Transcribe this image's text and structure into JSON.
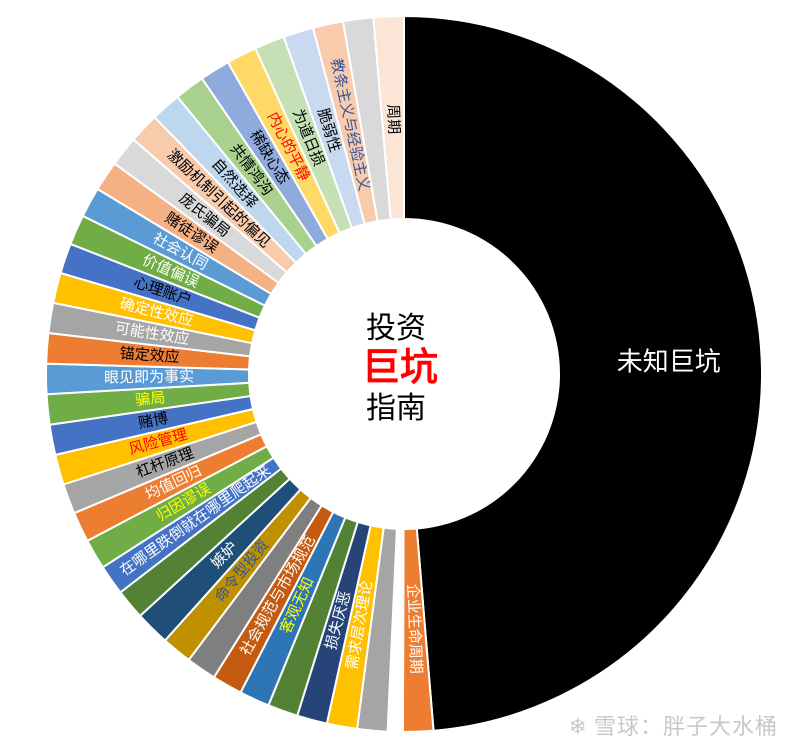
{
  "chart_data": {
    "type": "donut",
    "title": "",
    "center_text": {
      "line1": "投资",
      "line2": "巨坑",
      "line3": "指南"
    },
    "colors": {
      "center_line1": "#000000",
      "center_line2": "#ff0000",
      "center_line3": "#000000",
      "big_slice": "#000000",
      "palette": [
        "#ffc000",
        "#a5a5a5",
        "#ed7d31",
        "#5b9bd5",
        "#70ad47",
        "#4472c4",
        "#264478"
      ]
    },
    "slices": [
      {
        "label": "未知巨坑",
        "value": 50,
        "color": "#000000",
        "text_color": "#ffffff"
      },
      {
        "label": "企业生命周期",
        "value": 1.4,
        "color": "#ed7d31",
        "text_color": "#ffffff"
      },
      {
        "label": "",
        "value": 0.7,
        "color": "#ffffff",
        "text_color": "#ffffff"
      },
      {
        "label": "",
        "value": 1.4,
        "color": "#a5a5a5",
        "text_color": "#ffffff"
      },
      {
        "label": "需求层次理论",
        "value": 1.4,
        "color": "#ffc000",
        "text_color": "#ffffff"
      },
      {
        "label": "损失厌恶",
        "value": 1.4,
        "color": "#264478",
        "text_color": "#ffffff"
      },
      {
        "label": "",
        "value": 1.4,
        "color": "#548235",
        "text_color": "#ffffff"
      },
      {
        "label": "客观无知",
        "value": 1.4,
        "color": "#2e75b6",
        "text_color": "#ffff00"
      },
      {
        "label": "社会规范与市场规范",
        "value": 1.4,
        "color": "#c55a11",
        "text_color": "#ffffff"
      },
      {
        "label": "",
        "value": 1.4,
        "color": "#7f7f7f",
        "text_color": "#ffffff"
      },
      {
        "label": "命令型投资",
        "value": 1.4,
        "color": "#bf9000",
        "text_color": "#2f5597"
      },
      {
        "label": "嫉妒",
        "value": 1.6,
        "color": "#1f4e79",
        "text_color": "#ffffff"
      },
      {
        "label": "",
        "value": 1.4,
        "color": "#548235",
        "text_color": "#ffffff"
      },
      {
        "label": "在哪里跌倒就在哪里爬起来",
        "value": 1.4,
        "color": "#4472c4",
        "text_color": "#ffffff"
      },
      {
        "label": "归因谬误",
        "value": 1.4,
        "color": "#70ad47",
        "text_color": "#ffff00"
      },
      {
        "label": "均值回归",
        "value": 1.4,
        "color": "#ed7d31",
        "text_color": "#ffffff"
      },
      {
        "label": "杠杆原理",
        "value": 1.4,
        "color": "#a5a5a5",
        "text_color": "#000000"
      },
      {
        "label": "风险管理",
        "value": 1.4,
        "color": "#ffc000",
        "text_color": "#ff0000"
      },
      {
        "label": "赌博",
        "value": 1.4,
        "color": "#4472c4",
        "text_color": "#000000"
      },
      {
        "label": "骗局",
        "value": 1.4,
        "color": "#70ad47",
        "text_color": "#ffff00"
      },
      {
        "label": "眼见即为事实",
        "value": 1.4,
        "color": "#5b9bd5",
        "text_color": "#ffffff"
      },
      {
        "label": "锚定效应",
        "value": 1.4,
        "color": "#ed7d31",
        "text_color": "#000000"
      },
      {
        "label": "可能性效应",
        "value": 1.4,
        "color": "#a5a5a5",
        "text_color": "#ffffff"
      },
      {
        "label": "确定性效应",
        "value": 1.4,
        "color": "#ffc000",
        "text_color": "#ffffff"
      },
      {
        "label": "心理账户",
        "value": 1.4,
        "color": "#4472c4",
        "text_color": "#000000"
      },
      {
        "label": "价值偏误",
        "value": 1.4,
        "color": "#70ad47",
        "text_color": "#ffffff"
      },
      {
        "label": "社会认同",
        "value": 1.4,
        "color": "#5b9bd5",
        "text_color": "#ffffff"
      },
      {
        "label": "赌徒谬误",
        "value": 1.4,
        "color": "#f4b183",
        "text_color": "#000000"
      },
      {
        "label": "庞氏骗局",
        "value": 1.4,
        "color": "#d9d9d9",
        "text_color": "#000000"
      },
      {
        "label": "激励机制引起的偏见",
        "value": 1.4,
        "color": "#f8cbad",
        "text_color": "#000000"
      },
      {
        "label": "自然选择",
        "value": 1.4,
        "color": "#bdd7ee",
        "text_color": "#000000"
      },
      {
        "label": "共情鸿沟",
        "value": 1.4,
        "color": "#a9d18e",
        "text_color": "#000000"
      },
      {
        "label": "稀缺心态",
        "value": 1.4,
        "color": "#8faadc",
        "text_color": "#000000"
      },
      {
        "label": "内心的平静",
        "value": 1.4,
        "color": "#ffd966",
        "text_color": "#ff0000"
      },
      {
        "label": "为道日损",
        "value": 1.4,
        "color": "#c5e0b4",
        "text_color": "#000000"
      },
      {
        "label": "脆弱性",
        "value": 1.4,
        "color": "#c9d9f0",
        "text_color": "#000000"
      },
      {
        "label": "教条主义与经验主义",
        "value": 1.4,
        "color": "#f8cbad",
        "text_color": "#2f5597"
      },
      {
        "label": "",
        "value": 1.4,
        "color": "#d9d9d9",
        "text_color": "#000000"
      },
      {
        "label": "周期",
        "value": 1.4,
        "color": "#fbe5d6",
        "text_color": "#000000"
      }
    ]
  },
  "watermark": {
    "icon": "snowball-icon",
    "text": "雪球：胖子大水桶"
  }
}
